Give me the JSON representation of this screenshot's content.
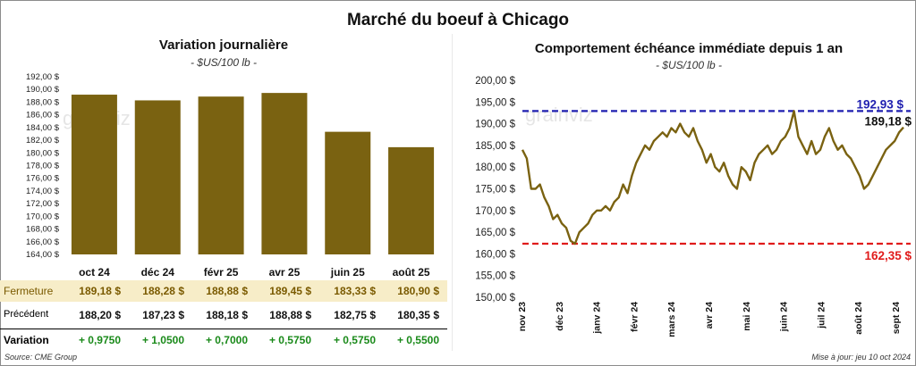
{
  "title": "Marché du boeuf à Chicago",
  "left": {
    "subtitle": "Variation journalière",
    "unit": "- $US/100 lb -",
    "watermark": "grainviz",
    "rows": {
      "fermeture_label": "Fermeture",
      "precedent_label": "Précédent",
      "variation_label": "Variation"
    },
    "fermeture": [
      "189,18  $",
      "188,28  $",
      "188,88  $",
      "189,45  $",
      "183,33  $",
      "180,90  $"
    ],
    "precedent": [
      "188,20  $",
      "187,23  $",
      "188,18  $",
      "188,88  $",
      "182,75  $",
      "180,35  $"
    ],
    "variation": [
      "+ 0,9750",
      "+ 1,0500",
      "+ 0,7000",
      "+ 0,5750",
      "+ 0,5750",
      "+ 0,5500"
    ],
    "colors": {
      "bar": "#7a6211",
      "fermeture_bg": "#f7edc8",
      "variation_text": "#1a8a1a"
    }
  },
  "right": {
    "subtitle": "Comportement  échéance immédiate depuis 1 an",
    "unit": "- $US/100 lb -",
    "watermark": "grainviz",
    "colors": {
      "line": "#7a6211",
      "high": "#1f1fb0",
      "low": "#e01b1b"
    }
  },
  "footer": {
    "source": "Source: CME Group",
    "updated": "Mise à jour: jeu 10 oct 2024"
  },
  "chart_data": [
    {
      "type": "bar",
      "categories": [
        "oct 24",
        "déc 24",
        "févr 25",
        "avr 25",
        "juin 25",
        "août 25"
      ],
      "values": [
        189.18,
        188.28,
        188.88,
        189.45,
        183.33,
        180.9
      ],
      "ylim": [
        164,
        192
      ],
      "yticks": [
        "164,00 $",
        "166,00 $",
        "168,00 $",
        "170,00 $",
        "172,00 $",
        "174,00 $",
        "176,00 $",
        "178,00 $",
        "180,00 $",
        "182,00 $",
        "184,00 $",
        "186,00 $",
        "188,00 $",
        "190,00 $",
        "192,00 $"
      ],
      "grid": false
    },
    {
      "type": "line",
      "x_labels": [
        "nov 23",
        "déc 23",
        "janv 24",
        "févr 24",
        "mars 24",
        "avr 24",
        "mai 24",
        "juin 24",
        "juil 24",
        "août 24",
        "sept 24"
      ],
      "values": [
        184,
        182,
        175,
        175,
        176,
        173,
        171,
        168,
        169,
        167,
        166,
        163,
        162.35,
        165,
        166,
        167,
        169,
        170,
        170,
        171,
        170,
        172,
        173,
        176,
        174,
        178,
        181,
        183,
        185,
        184,
        186,
        187,
        188,
        187,
        189,
        188,
        190,
        188,
        187,
        189,
        186,
        184,
        181,
        183,
        180,
        179,
        181,
        178,
        176,
        175,
        180,
        179,
        177,
        181,
        183,
        184,
        185,
        183,
        184,
        186,
        187,
        189,
        192.93,
        187,
        185,
        183,
        186,
        183,
        184,
        187,
        189,
        186,
        184,
        185,
        183,
        182,
        180,
        178,
        175,
        176,
        178,
        180,
        182,
        184,
        185,
        186,
        188,
        189.18
      ],
      "ylim": [
        150,
        200
      ],
      "yticks": [
        "150,00 $",
        "155,00 $",
        "160,00 $",
        "165,00 $",
        "170,00 $",
        "175,00 $",
        "180,00 $",
        "185,00 $",
        "190,00 $",
        "195,00 $",
        "200,00 $"
      ],
      "high": {
        "value": 192.93,
        "label": "192,93 $"
      },
      "low": {
        "value": 162.35,
        "label": "162,35 $"
      },
      "last": {
        "value": 189.18,
        "label": "189,18 $"
      },
      "grid": false
    }
  ]
}
